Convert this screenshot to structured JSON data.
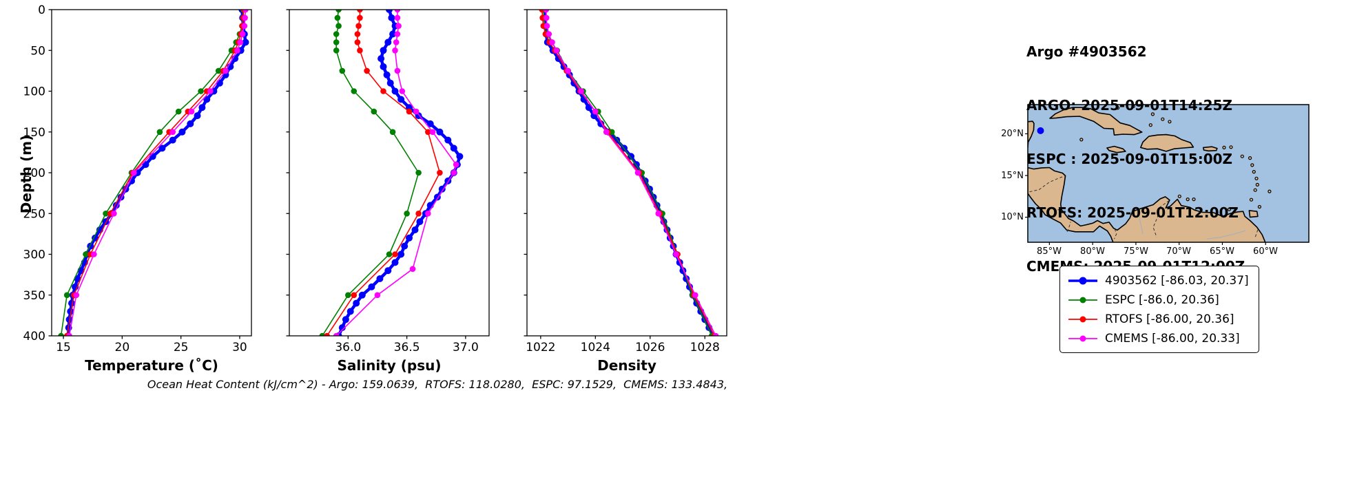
{
  "header": {
    "lines": [
      "Argo #4903562",
      "ARGO: 2025-09-01T14:25Z",
      "ESPC : 2025-09-01T15:00Z",
      "RTOFS: 2025-09-01T12:00Z",
      "CMEMS: 2025-09-01T12:00Z"
    ]
  },
  "footer": "Ocean Heat Content (kJ/cm^2) - Argo: 159.0639,  RTOFS: 118.0280,  ESPC: 97.1529,  CMEMS: 133.4843,",
  "legend": {
    "items": [
      {
        "label": "4903562 [-86.03, 20.37]",
        "color": "#0000ff",
        "thick": true
      },
      {
        "label": "ESPC [-86.0, 20.36]",
        "color": "#008000",
        "thick": false
      },
      {
        "label": "RTOFS [-86.00, 20.36]",
        "color": "#ff0000",
        "thick": false
      },
      {
        "label": "CMEMS [-86.00, 20.33]",
        "color": "#ff00ff",
        "thick": false
      }
    ]
  },
  "map": {
    "lat_ticks": [
      "20°N",
      "15°N",
      "10°N"
    ],
    "lon_ticks": [
      "85°W",
      "80°W",
      "75°W",
      "70°W",
      "65°W",
      "60°W"
    ],
    "marker": {
      "lon": -86.03,
      "lat": 20.37,
      "color": "#0000ff"
    },
    "colors": {
      "ocean": "#a3c1e0",
      "land": "#dbb78f",
      "coast": "#000000"
    }
  },
  "chart_data": [
    {
      "type": "line",
      "title": "",
      "xlabel": "Temperature (˚C)",
      "ylabel": "Depth (m)",
      "xlim": [
        14,
        31
      ],
      "ylim": [
        0,
        400
      ],
      "y_inverted": true,
      "grid": false,
      "xticks": [
        15,
        20,
        25,
        30
      ],
      "xtick_labels": [
        "15",
        "20",
        "25",
        "30"
      ],
      "yticks": [
        0,
        50,
        100,
        150,
        200,
        250,
        300,
        350,
        400
      ],
      "ytick_labels": [
        "0",
        "50",
        "100",
        "150",
        "200",
        "250",
        "300",
        "350",
        "400"
      ],
      "show_ytick_labels": true,
      "series": [
        {
          "name": "4903562",
          "color": "#0000ff",
          "line_width": 4.5,
          "marker_size": 5,
          "depth": [
            0,
            10,
            20,
            30,
            40,
            50,
            60,
            70,
            80,
            90,
            100,
            110,
            120,
            130,
            140,
            150,
            160,
            170,
            180,
            190,
            200,
            210,
            220,
            230,
            240,
            250,
            260,
            270,
            280,
            290,
            300,
            310,
            320,
            330,
            340,
            350,
            360,
            370,
            380,
            390,
            400
          ],
          "values": [
            30.2,
            30.25,
            30.3,
            30.4,
            30.5,
            30.1,
            29.6,
            29.2,
            28.8,
            28.3,
            27.8,
            27.2,
            26.8,
            26.4,
            25.8,
            25.1,
            24.3,
            23.4,
            22.6,
            22.0,
            21.3,
            20.8,
            20.3,
            19.9,
            19.5,
            19.1,
            18.6,
            18.1,
            17.7,
            17.3,
            17.0,
            16.8,
            16.5,
            16.2,
            16.0,
            15.8,
            15.7,
            15.6,
            15.5,
            15.45,
            15.4
          ]
        },
        {
          "name": "ESPC",
          "color": "#008000",
          "line_width": 1.6,
          "marker_size": 4.3,
          "depth": [
            0,
            10,
            20,
            30,
            40,
            50,
            75,
            100,
            125,
            150,
            200,
            250,
            300,
            350,
            400
          ],
          "values": [
            30.3,
            30.28,
            30.2,
            30.0,
            29.7,
            29.3,
            28.2,
            26.7,
            24.8,
            23.2,
            20.8,
            18.6,
            16.9,
            15.3,
            14.8
          ]
        },
        {
          "name": "RTOFS",
          "color": "#ff0000",
          "line_width": 1.6,
          "marker_size": 4.3,
          "depth": [
            0,
            10,
            20,
            30,
            40,
            50,
            75,
            100,
            125,
            150,
            200,
            250,
            300,
            350,
            400
          ],
          "values": [
            30.35,
            30.3,
            30.22,
            30.1,
            29.9,
            29.6,
            28.6,
            27.2,
            25.6,
            24.0,
            20.9,
            19.0,
            17.3,
            15.9,
            15.3
          ]
        },
        {
          "name": "CMEMS",
          "color": "#ff00ff",
          "line_width": 1.6,
          "marker_size": 4.3,
          "depth": [
            0,
            10,
            20,
            30,
            40,
            50,
            75,
            100,
            125,
            150,
            200,
            250,
            300,
            350,
            400
          ],
          "values": [
            30.5,
            30.45,
            30.4,
            30.25,
            30.05,
            29.8,
            28.8,
            27.5,
            25.9,
            24.3,
            21.0,
            19.3,
            17.6,
            16.1,
            15.5
          ]
        }
      ]
    },
    {
      "type": "line",
      "title": "",
      "xlabel": "Salinity (psu)",
      "ylabel": "",
      "xlim": [
        35.5,
        37.2
      ],
      "ylim": [
        0,
        400
      ],
      "y_inverted": true,
      "grid": false,
      "xticks": [
        36.0,
        36.5,
        37.0
      ],
      "xtick_labels": [
        "36.0",
        "36.5",
        "37.0"
      ],
      "yticks": [
        0,
        50,
        100,
        150,
        200,
        250,
        300,
        350,
        400
      ],
      "ytick_labels": [
        "0",
        "50",
        "100",
        "150",
        "200",
        "250",
        "300",
        "350",
        "400"
      ],
      "show_ytick_labels": false,
      "series": [
        {
          "name": "4903562",
          "color": "#0000ff",
          "line_width": 4.5,
          "marker_size": 5,
          "depth": [
            0,
            10,
            20,
            30,
            40,
            50,
            60,
            70,
            80,
            90,
            100,
            110,
            120,
            130,
            140,
            150,
            160,
            170,
            180,
            190,
            200,
            210,
            220,
            230,
            240,
            250,
            260,
            270,
            280,
            290,
            300,
            310,
            320,
            330,
            340,
            350,
            360,
            370,
            380,
            390,
            400
          ],
          "values": [
            36.35,
            36.37,
            36.4,
            36.38,
            36.34,
            36.3,
            36.28,
            36.3,
            36.33,
            36.36,
            36.4,
            36.45,
            36.52,
            36.6,
            36.7,
            36.78,
            36.85,
            36.9,
            36.95,
            36.93,
            36.9,
            36.85,
            36.8,
            36.76,
            36.7,
            36.66,
            36.61,
            36.57,
            36.52,
            36.48,
            36.45,
            36.4,
            36.34,
            36.27,
            36.2,
            36.12,
            36.07,
            36.02,
            35.98,
            35.95,
            35.92
          ]
        },
        {
          "name": "ESPC",
          "color": "#008000",
          "line_width": 1.6,
          "marker_size": 4.3,
          "depth": [
            0,
            10,
            20,
            30,
            40,
            50,
            75,
            100,
            125,
            150,
            200,
            250,
            300,
            350,
            400
          ],
          "values": [
            35.92,
            35.91,
            35.92,
            35.9,
            35.9,
            35.9,
            35.95,
            36.05,
            36.22,
            36.38,
            36.6,
            36.5,
            36.35,
            36.0,
            35.78
          ]
        },
        {
          "name": "RTOFS",
          "color": "#ff0000",
          "line_width": 1.6,
          "marker_size": 4.3,
          "depth": [
            0,
            10,
            20,
            30,
            40,
            50,
            75,
            100,
            125,
            150,
            200,
            250,
            300,
            350,
            400
          ],
          "values": [
            36.1,
            36.1,
            36.09,
            36.08,
            36.08,
            36.1,
            36.16,
            36.3,
            36.52,
            36.68,
            36.78,
            36.6,
            36.4,
            36.05,
            35.82
          ]
        },
        {
          "name": "CMEMS",
          "color": "#ff00ff",
          "line_width": 1.6,
          "marker_size": 4.3,
          "depth": [
            0,
            10,
            20,
            30,
            40,
            50,
            75,
            100,
            125,
            150,
            190,
            200,
            250,
            318,
            350,
            400
          ],
          "values": [
            36.42,
            36.42,
            36.43,
            36.42,
            36.41,
            36.4,
            36.42,
            36.46,
            36.58,
            36.72,
            36.92,
            36.9,
            36.68,
            36.55,
            36.25,
            35.9
          ]
        }
      ]
    },
    {
      "type": "line",
      "title": "",
      "xlabel": "Density",
      "ylabel": "",
      "xlim": [
        1021.5,
        1028.8
      ],
      "ylim": [
        0,
        400
      ],
      "y_inverted": true,
      "grid": false,
      "xticks": [
        1022,
        1024,
        1026,
        1028
      ],
      "xtick_labels": [
        "1022",
        "1024",
        "1026",
        "1028"
      ],
      "yticks": [
        0,
        50,
        100,
        150,
        200,
        250,
        300,
        350,
        400
      ],
      "ytick_labels": [
        "0",
        "50",
        "100",
        "150",
        "200",
        "250",
        "300",
        "350",
        "400"
      ],
      "show_ytick_labels": false,
      "series": [
        {
          "name": "4903562",
          "color": "#0000ff",
          "line_width": 4.5,
          "marker_size": 5,
          "depth": [
            0,
            10,
            20,
            30,
            40,
            50,
            60,
            70,
            80,
            90,
            100,
            110,
            120,
            130,
            140,
            150,
            160,
            170,
            180,
            190,
            200,
            210,
            220,
            230,
            240,
            250,
            260,
            270,
            280,
            290,
            300,
            310,
            320,
            330,
            340,
            350,
            360,
            370,
            380,
            390,
            400
          ],
          "values": [
            1022.15,
            1022.16,
            1022.18,
            1022.2,
            1022.25,
            1022.45,
            1022.65,
            1022.85,
            1023.05,
            1023.22,
            1023.4,
            1023.58,
            1023.76,
            1023.95,
            1024.2,
            1024.48,
            1024.78,
            1025.05,
            1025.3,
            1025.5,
            1025.65,
            1025.82,
            1025.98,
            1026.12,
            1026.25,
            1026.38,
            1026.5,
            1026.62,
            1026.73,
            1026.85,
            1026.95,
            1027.08,
            1027.2,
            1027.32,
            1027.44,
            1027.56,
            1027.7,
            1027.85,
            1028.0,
            1028.15,
            1028.3
          ]
        },
        {
          "name": "ESPC",
          "color": "#008000",
          "line_width": 1.6,
          "marker_size": 4.3,
          "depth": [
            0,
            10,
            20,
            30,
            40,
            50,
            75,
            100,
            125,
            150,
            200,
            250,
            300,
            350,
            400
          ],
          "values": [
            1022.1,
            1022.12,
            1022.15,
            1022.25,
            1022.4,
            1022.6,
            1023.0,
            1023.55,
            1024.1,
            1024.6,
            1025.7,
            1026.45,
            1027.0,
            1027.55,
            1028.25
          ]
        },
        {
          "name": "RTOFS",
          "color": "#ff0000",
          "line_width": 1.6,
          "marker_size": 4.3,
          "depth": [
            0,
            10,
            20,
            30,
            40,
            50,
            75,
            100,
            125,
            150,
            200,
            250,
            300,
            350,
            400
          ],
          "values": [
            1022.05,
            1022.07,
            1022.1,
            1022.18,
            1022.32,
            1022.52,
            1022.95,
            1023.45,
            1024.0,
            1024.45,
            1025.6,
            1026.35,
            1027.0,
            1027.6,
            1028.35
          ]
        },
        {
          "name": "CMEMS",
          "color": "#ff00ff",
          "line_width": 1.6,
          "marker_size": 4.3,
          "depth": [
            0,
            10,
            20,
            30,
            40,
            50,
            75,
            100,
            125,
            150,
            200,
            250,
            300,
            350,
            400
          ],
          "values": [
            1022.2,
            1022.21,
            1022.23,
            1022.3,
            1022.42,
            1022.58,
            1023.0,
            1023.48,
            1024.0,
            1024.4,
            1025.55,
            1026.3,
            1026.95,
            1027.65,
            1028.4
          ]
        }
      ]
    }
  ]
}
